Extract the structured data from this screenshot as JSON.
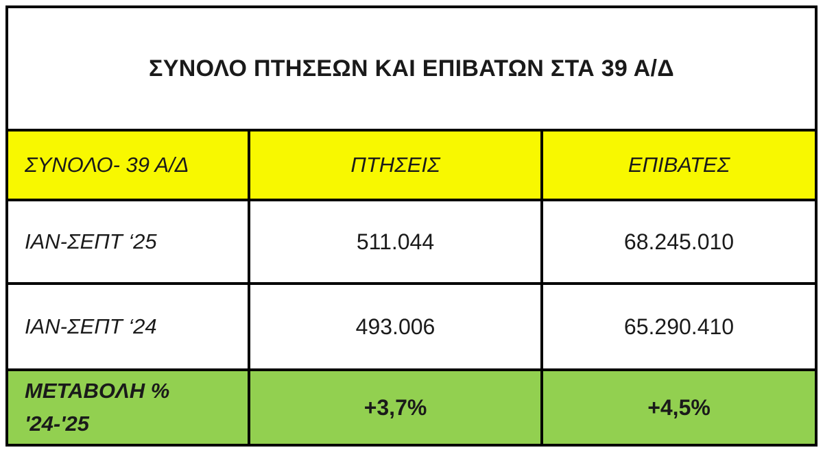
{
  "table": {
    "title": "ΣΥΝΟΛΟ ΠΤΗΣΕΩΝ ΚΑΙ ΕΠΙΒΑΤΩΝ ΣΤΑ 39 Α/Δ",
    "header": {
      "label": "ΣΥΝΟΛΟ- 39 Α/Δ",
      "flights": "ΠΤΗΣΕΙΣ",
      "passengers": "ΕΠΙΒΑΤΕΣ"
    },
    "rows": [
      {
        "label": "ΙΑΝ-ΣΕΠΤ ‘25",
        "flights": "511.044",
        "passengers": "68.245.010"
      },
      {
        "label": "ΙΑΝ-ΣΕΠΤ ‘24",
        "flights": "493.006",
        "passengers": "65.290.410"
      }
    ],
    "footer": {
      "label": "ΜΕΤΑΒΟΛΗ %\n'24-'25",
      "flights": "+3,7%",
      "passengers": "+4,5%"
    },
    "colors": {
      "header_bg": "#f8f800",
      "footer_bg": "#92d050",
      "border": "#000000",
      "text": "#1a1a1a"
    }
  }
}
